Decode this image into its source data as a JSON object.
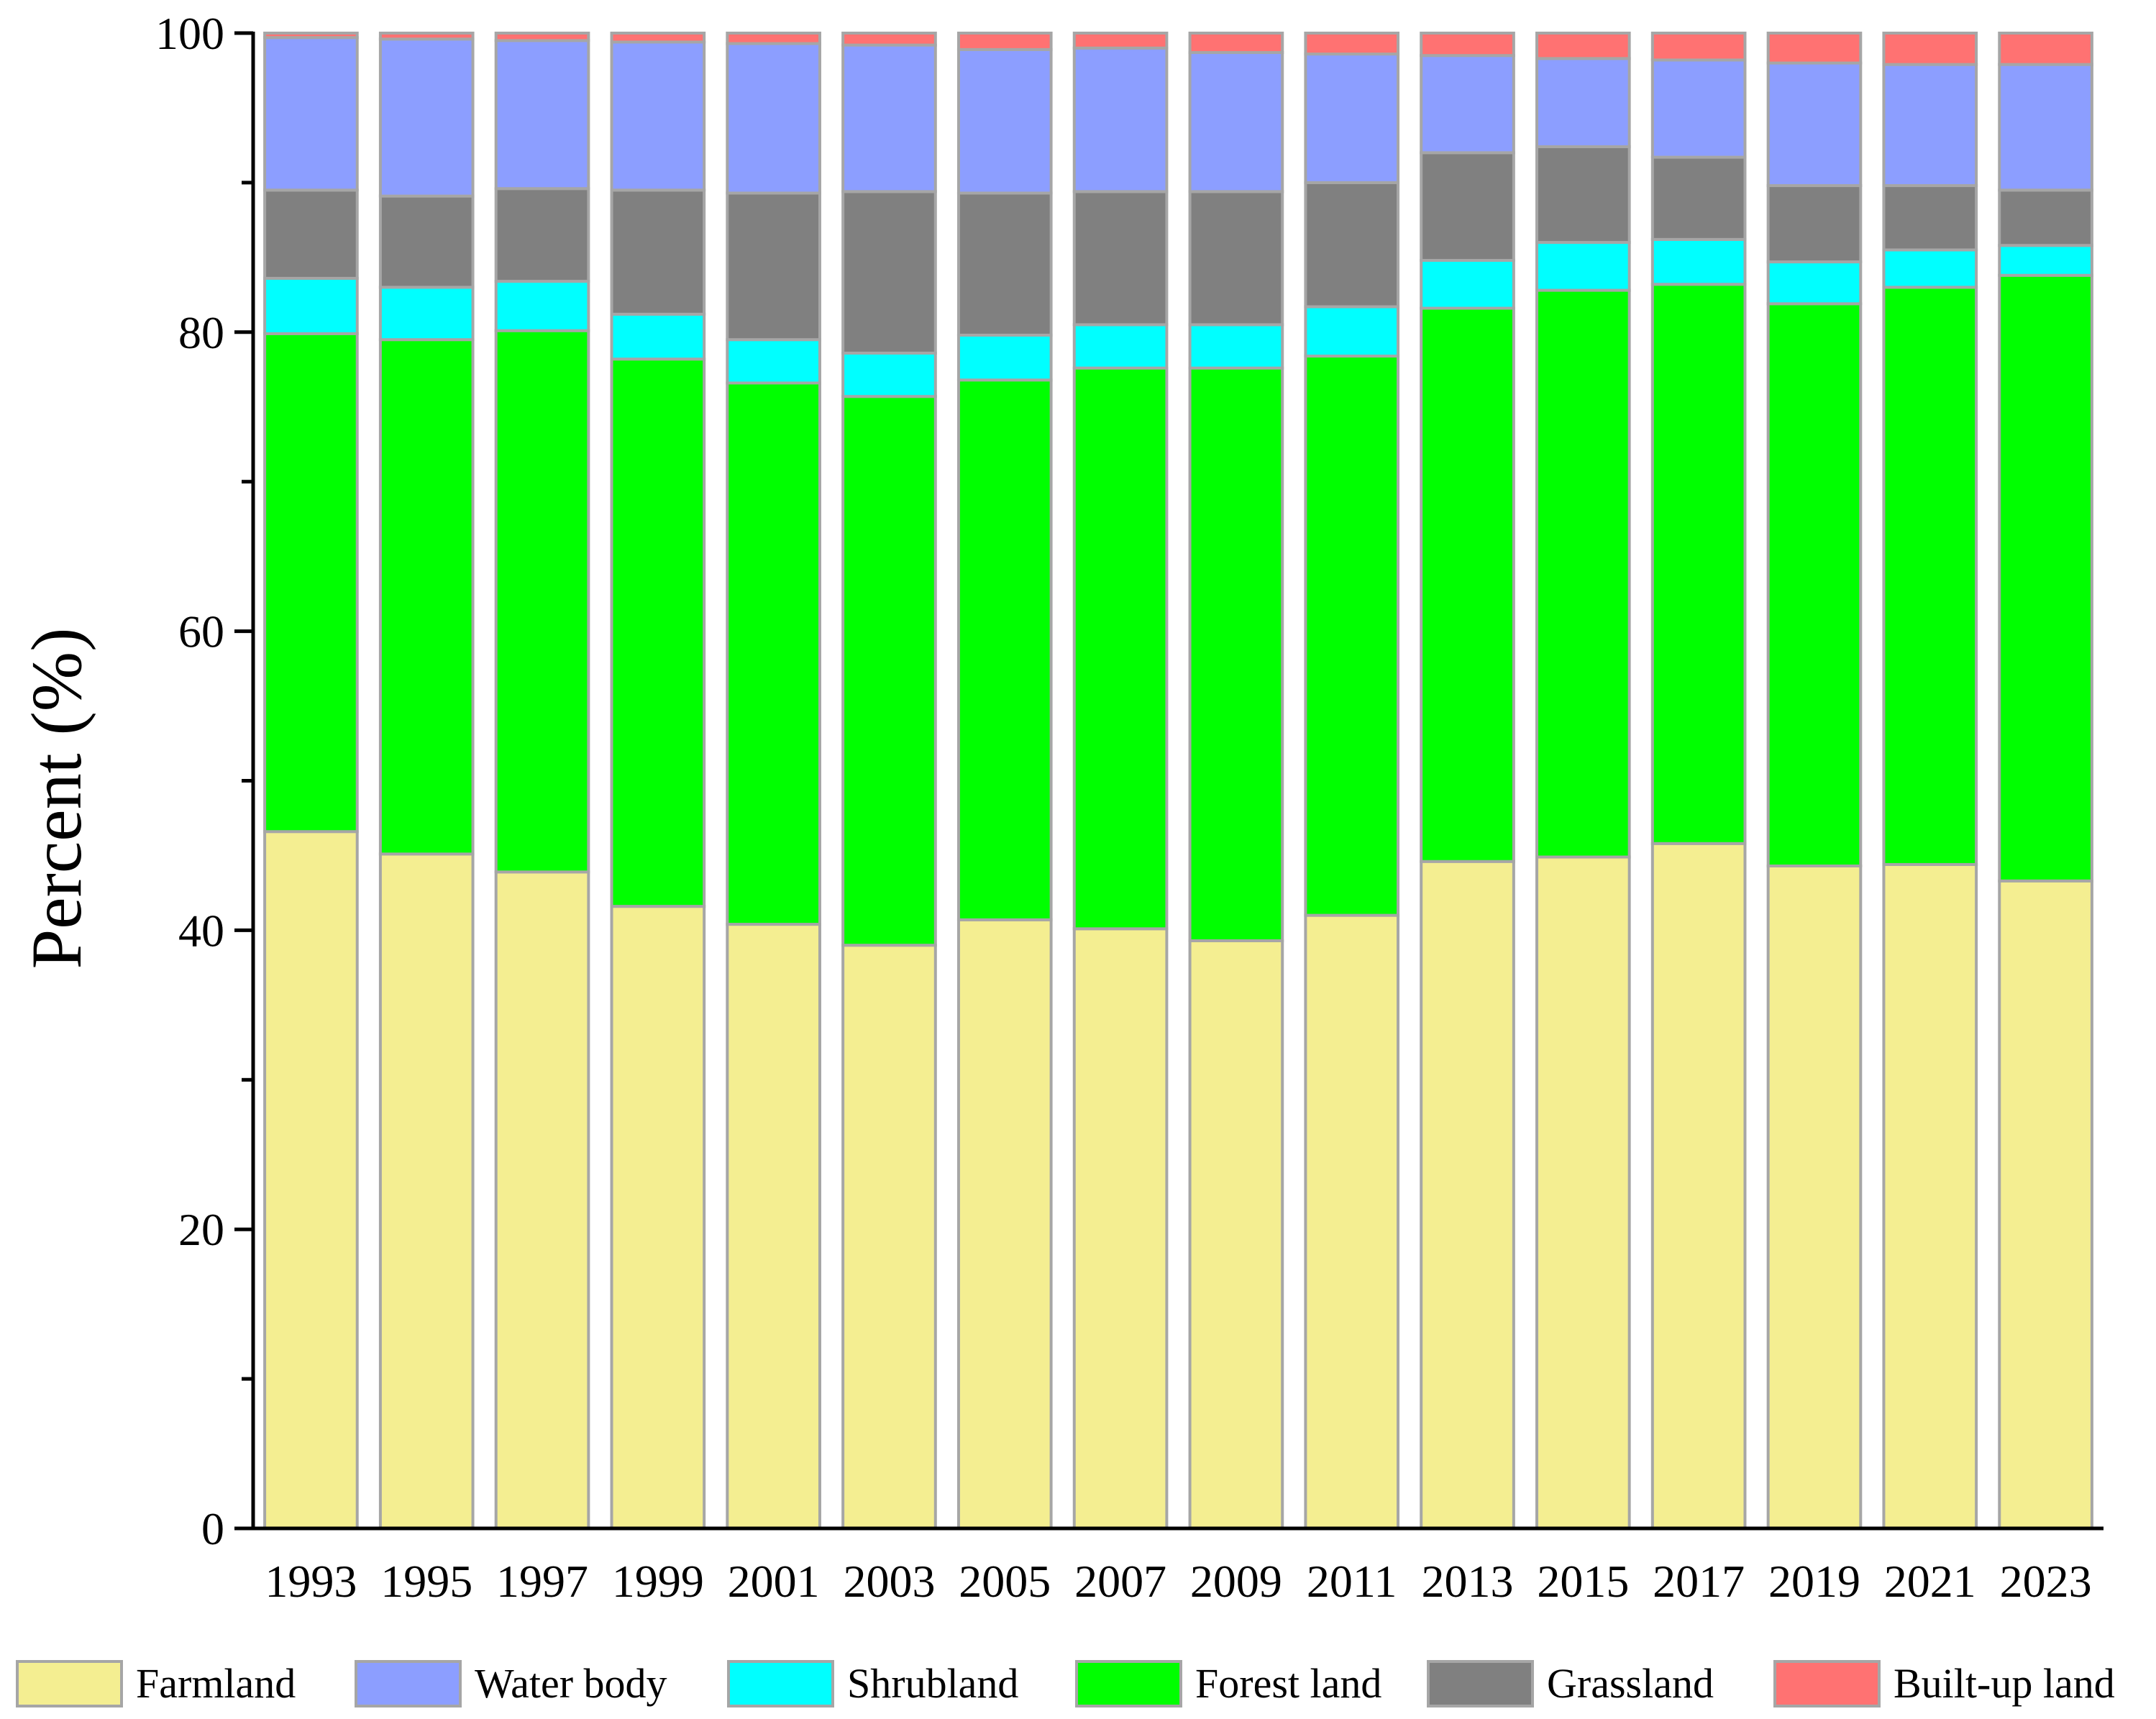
{
  "chart_data": {
    "type": "bar",
    "stacked": true,
    "title": "",
    "xlabel": "",
    "ylabel": "Percent (%)",
    "ylim": [
      0,
      100
    ],
    "yticks": [
      0,
      20,
      40,
      60,
      80,
      100
    ],
    "legend_position": "bottom",
    "categories": [
      "1993",
      "1995",
      "1997",
      "1999",
      "2001",
      "2003",
      "2005",
      "2007",
      "2009",
      "2011",
      "2013",
      "2015",
      "2017",
      "2019",
      "2021",
      "2023"
    ],
    "series": [
      {
        "name": "Farmland",
        "color": "#f4ee91",
        "values": [
          46.6,
          45.1,
          43.9,
          41.6,
          40.4,
          39.0,
          40.7,
          40.1,
          39.3,
          41.0,
          44.6,
          44.9,
          45.8,
          44.3,
          44.4,
          43.3
        ]
      },
      {
        "name": "Forest land",
        "color": "#00ff00",
        "values": [
          33.3,
          34.4,
          36.2,
          36.6,
          36.2,
          36.7,
          36.1,
          37.5,
          38.3,
          37.4,
          37.0,
          37.9,
          37.4,
          37.6,
          38.6,
          40.5
        ]
      },
      {
        "name": "Shrubland",
        "color": "#00ffff",
        "values": [
          3.7,
          3.5,
          3.3,
          3.0,
          2.9,
          2.9,
          3.0,
          2.9,
          2.9,
          3.3,
          3.2,
          3.2,
          3.0,
          2.8,
          2.5,
          2.0
        ]
      },
      {
        "name": "Grassland",
        "color": "#808080",
        "values": [
          5.9,
          6.1,
          6.2,
          8.3,
          9.8,
          10.8,
          9.5,
          8.9,
          8.9,
          8.3,
          7.2,
          6.4,
          5.5,
          5.1,
          4.3,
          3.7
        ]
      },
      {
        "name": "Water body",
        "color": "#8c9eff",
        "values": [
          10.2,
          10.5,
          9.9,
          9.9,
          10.0,
          9.8,
          9.6,
          9.6,
          9.3,
          8.6,
          6.5,
          5.9,
          6.5,
          8.2,
          8.1,
          8.4
        ]
      },
      {
        "name": "Built-up land",
        "color": "#ff7272",
        "values": [
          0.3,
          0.4,
          0.5,
          0.6,
          0.7,
          0.8,
          1.1,
          1.0,
          1.3,
          1.4,
          1.5,
          1.7,
          1.8,
          2.0,
          2.1,
          2.1
        ]
      }
    ],
    "legend_order": [
      "Farmland",
      "Water body",
      "Shrubland",
      "Forest land",
      "Grassland",
      "Built-up land"
    ]
  }
}
